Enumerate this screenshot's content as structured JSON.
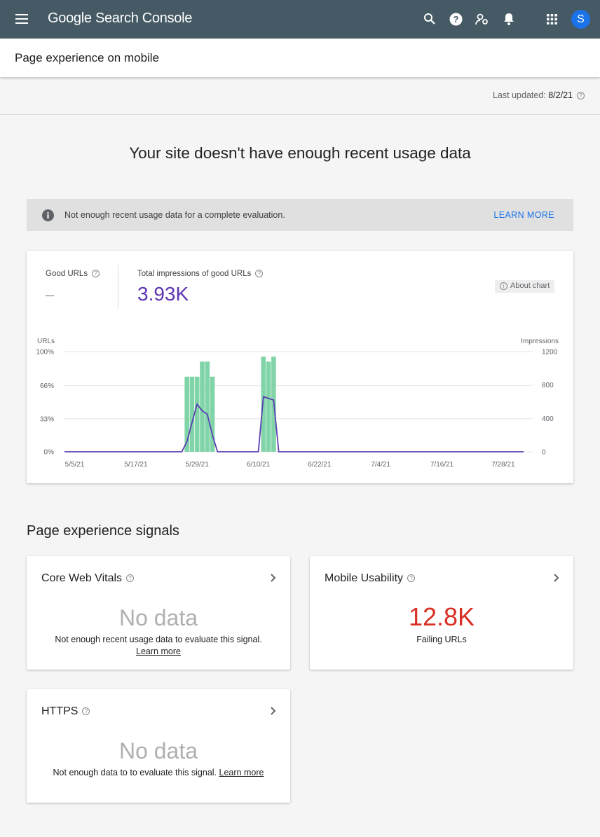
{
  "header": {
    "app_name": "Google Search Console",
    "avatar": "S"
  },
  "page_title": "Page experience on mobile",
  "last_updated": {
    "label": "Last updated:",
    "value": "8/2/21"
  },
  "headline": "Your site doesn't have enough recent usage data",
  "banner": {
    "text": "Not enough recent usage data for a complete evaluation.",
    "action": "LEARN MORE"
  },
  "summary": {
    "metrics": [
      {
        "label": "Good URLs",
        "value": "–"
      },
      {
        "label": "Total impressions of good URLs",
        "value": "3.93K"
      }
    ],
    "about_chart": "About chart"
  },
  "chart_data": {
    "type": "bar",
    "y_label": "URLs",
    "y2_label": "Impressions",
    "categories": [
      null,
      null,
      "5/5/21",
      null,
      null,
      null,
      null,
      null,
      null,
      null,
      null,
      null,
      null,
      null,
      "5/17/21",
      null,
      null,
      null,
      null,
      null,
      null,
      null,
      null,
      null,
      null,
      null,
      "5/29/21",
      null,
      null,
      null,
      null,
      null,
      null,
      null,
      null,
      null,
      null,
      null,
      "6/10/21",
      null,
      null,
      null,
      null,
      null,
      null,
      null,
      null,
      null,
      null,
      null,
      "6/22/21",
      null,
      null,
      null,
      null,
      null,
      null,
      null,
      null,
      null,
      null,
      null,
      "7/4/21",
      null,
      null,
      null,
      null,
      null,
      null,
      null,
      null,
      null,
      null,
      null,
      "7/16/21",
      null,
      null,
      null,
      null,
      null,
      null,
      null,
      null,
      null,
      null,
      null,
      "7/28/21",
      null,
      null,
      null,
      null
    ],
    "ylim": [
      0,
      100
    ],
    "yticks": [
      {
        "value": 0,
        "label": "0%"
      },
      {
        "value": 33,
        "label": "33%"
      },
      {
        "value": 66,
        "label": "66%"
      },
      {
        "value": 100,
        "label": "100%"
      }
    ],
    "y2lim": [
      0,
      1200
    ],
    "y2ticks": [
      0,
      400,
      800,
      1200
    ],
    "grid": true,
    "series": [
      {
        "type": "bar",
        "color": "#81d4a8",
        "values": [
          0,
          0,
          0,
          0,
          0,
          0,
          0,
          0,
          0,
          0,
          0,
          0,
          0,
          0,
          0,
          0,
          0,
          0,
          0,
          0,
          0,
          0,
          0,
          0,
          75,
          75,
          75,
          90,
          90,
          75,
          0,
          0,
          0,
          0,
          0,
          0,
          0,
          0,
          0,
          95,
          90,
          95,
          0,
          0,
          0,
          0,
          0,
          0,
          0,
          0,
          0,
          0,
          0,
          0,
          0,
          0,
          0,
          0,
          0,
          0,
          0,
          0,
          0,
          0,
          0,
          0,
          0,
          0,
          0,
          0,
          0,
          0,
          0,
          0,
          0,
          0,
          0,
          0,
          0,
          0,
          0,
          0,
          0,
          0,
          0,
          0,
          0,
          0,
          0,
          0,
          0
        ]
      },
      {
        "type": "line",
        "axis": "y2",
        "color": "#5b3fb3",
        "values": [
          0,
          0,
          0,
          0,
          0,
          0,
          0,
          0,
          0,
          0,
          0,
          0,
          0,
          0,
          0,
          0,
          0,
          0,
          0,
          0,
          0,
          0,
          0,
          0,
          120,
          350,
          570,
          490,
          450,
          200,
          0,
          0,
          0,
          0,
          0,
          0,
          0,
          0,
          0,
          660,
          640,
          620,
          0,
          0,
          0,
          0,
          0,
          0,
          0,
          0,
          0,
          0,
          0,
          0,
          0,
          0,
          0,
          0,
          0,
          0,
          0,
          0,
          0,
          0,
          0,
          0,
          0,
          0,
          0,
          0,
          0,
          0,
          0,
          0,
          0,
          0,
          0,
          0,
          0,
          0,
          0,
          0,
          0,
          0,
          0,
          0,
          0,
          0,
          0,
          0,
          0
        ]
      }
    ]
  },
  "signals": {
    "title": "Page experience signals",
    "cards": [
      {
        "title": "Core Web Vitals",
        "value": "No data",
        "note": "Not enough recent usage data to evaluate this signal.",
        "link": "Learn more"
      },
      {
        "title": "Mobile Usability",
        "value": "12.8K",
        "note": "Failing URLs"
      },
      {
        "title": "HTTPS",
        "value": "No data",
        "note": "Not enough data to to evaluate this signal.",
        "link": "Learn more"
      }
    ]
  }
}
